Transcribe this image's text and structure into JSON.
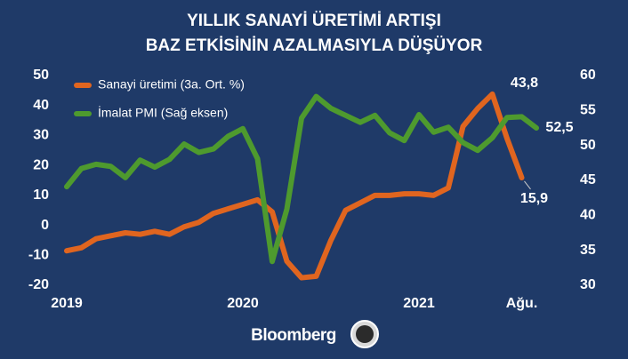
{
  "chart_data": {
    "type": "line",
    "title": [
      "YILLIK SANAYİ ÜRETİMİ ARTIŞI",
      "BAZ ETKİSİNİN AZALMASIYLA DÜŞÜYOR"
    ],
    "footer": "Bloomberg",
    "categories": [
      "2019",
      null,
      null,
      null,
      null,
      null,
      null,
      null,
      null,
      null,
      null,
      null,
      "2020",
      null,
      null,
      null,
      null,
      null,
      null,
      null,
      null,
      null,
      null,
      null,
      "2021",
      null,
      null,
      null,
      null,
      null,
      null,
      "Ağu.",
      null
    ],
    "series": [
      {
        "name": "Sanayi üretimi (3a. Ort. %)",
        "color": "#e0651f",
        "values": [
          -8.5,
          -7.5,
          -4.5,
          -3.5,
          -2.5,
          -3,
          -2,
          -3,
          -0.5,
          1,
          4,
          5.5,
          7,
          8.5,
          4.5,
          -12,
          -17.5,
          -17,
          -5,
          5,
          7.5,
          10,
          10,
          10.5,
          10.5,
          10,
          12.5,
          33,
          39,
          43.8,
          29,
          15.9,
          null
        ],
        "value_labels": [
          null,
          null,
          null,
          null,
          null,
          null,
          null,
          null,
          null,
          null,
          null,
          null,
          null,
          null,
          null,
          null,
          null,
          null,
          null,
          null,
          null,
          null,
          null,
          null,
          null,
          null,
          null,
          null,
          null,
          "43,8",
          null,
          "15,9",
          null
        ]
      },
      {
        "name": "İmalat PMI (Sağ eksen)",
        "color": "#4e9a2e",
        "axis": "y2",
        "values": [
          44.1,
          46.7,
          47.3,
          47,
          45.4,
          47.9,
          46.9,
          48,
          50.2,
          49,
          49.5,
          51.3,
          52.4,
          48.1,
          33.4,
          40.9,
          53.9,
          57,
          55.3,
          54.3,
          53.3,
          54.3,
          51.8,
          50.7,
          54.4,
          51.9,
          52.6,
          50.4,
          49.3,
          51.1,
          54,
          54.1,
          52.5
        ],
        "value_labels": [
          null,
          null,
          null,
          null,
          null,
          null,
          null,
          null,
          null,
          null,
          null,
          null,
          null,
          null,
          null,
          null,
          null,
          null,
          null,
          null,
          null,
          null,
          null,
          null,
          null,
          null,
          null,
          null,
          null,
          null,
          null,
          null,
          "52,5"
        ]
      }
    ],
    "ylim": [
      -20,
      50
    ],
    "yticks": [
      -20,
      -10,
      0,
      10,
      20,
      30,
      40,
      50
    ],
    "y2lim": [
      30,
      60
    ],
    "y2ticks": [
      30,
      35,
      40,
      45,
      50,
      55,
      60
    ],
    "legend": "upper left",
    "grid": false
  }
}
